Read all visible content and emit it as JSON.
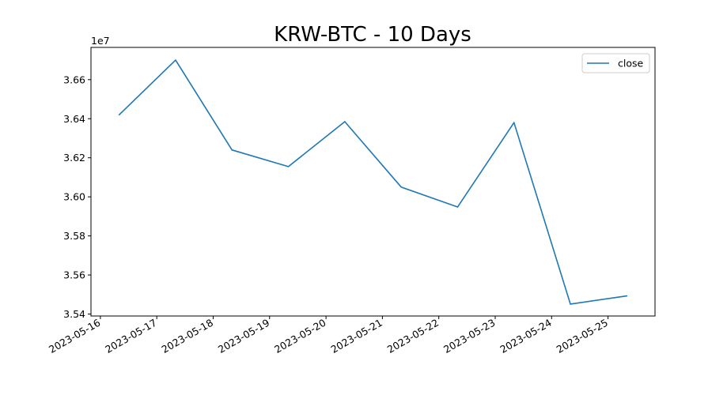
{
  "chart_data": {
    "type": "line",
    "title": "KRW-BTC - 10 Days",
    "xlabel": "",
    "ylabel": "",
    "y_offset_label": "1e7",
    "y_scale": 10000000,
    "x": [
      "2023-05-16 08:00",
      "2023-05-17 08:00",
      "2023-05-18 08:00",
      "2023-05-19 08:00",
      "2023-05-20 08:00",
      "2023-05-21 08:00",
      "2023-05-22 08:00",
      "2023-05-23 08:00",
      "2023-05-24 08:00",
      "2023-05-25 08:00"
    ],
    "series": [
      {
        "name": "close",
        "color": "#1f77b4",
        "values": [
          36420000,
          36700000,
          36240000,
          36155000,
          36385000,
          36050000,
          35948000,
          36380000,
          35451000,
          35493000
        ]
      }
    ],
    "xlim": [
      "2023-05-15 20:00",
      "2023-05-25 20:00"
    ],
    "ylim": [
      35390000,
      36765000
    ],
    "x_ticks": [
      "2023-05-16",
      "2023-05-17",
      "2023-05-18",
      "2023-05-19",
      "2023-05-20",
      "2023-05-21",
      "2023-05-22",
      "2023-05-23",
      "2023-05-24",
      "2023-05-25"
    ],
    "y_ticks": [
      35400000,
      35600000,
      35800000,
      36000000,
      36200000,
      36400000,
      36600000
    ],
    "y_tick_labels": [
      "3.54",
      "3.56",
      "3.58",
      "3.60",
      "3.62",
      "3.64",
      "3.66"
    ],
    "legend_position": "top-right",
    "grid": false
  }
}
